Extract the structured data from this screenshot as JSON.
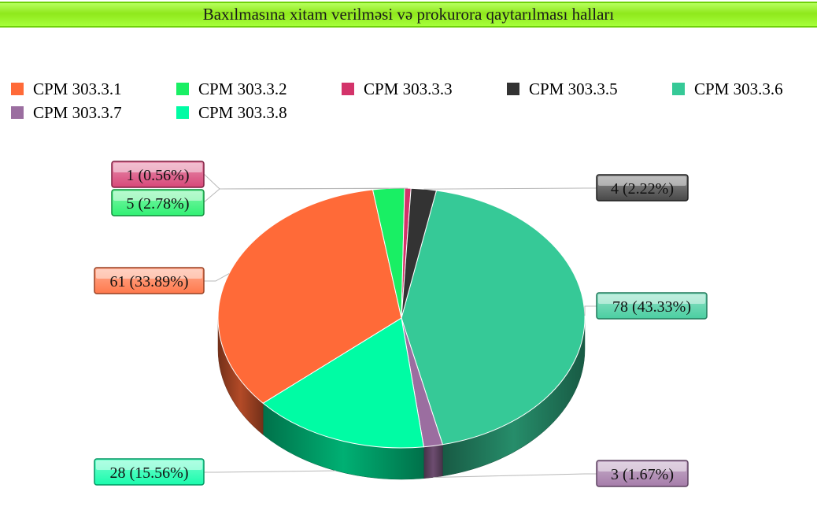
{
  "chart_data": {
    "type": "pie",
    "title": "Baxılmasına xitam verilməsi və prokurora qaytarılması halları",
    "legend_position": "top",
    "slices": [
      {
        "name": "CPM 303.3.6",
        "value": 78,
        "label": "78 (43.33%)",
        "color": "#36c997"
      },
      {
        "name": "CPM 303.3.7",
        "value": 3,
        "label": "3 (1.67%)",
        "color": "#9b6ea0"
      },
      {
        "name": "CPM 303.3.8",
        "value": 28,
        "label": "28 (15.56%)",
        "color": "#00fca4"
      },
      {
        "name": "CPM 303.3.1",
        "value": 61,
        "label": "61 (33.89%)",
        "color": "#ff6a38"
      },
      {
        "name": "CPM 303.3.2",
        "value": 5,
        "label": "5 (2.78%)",
        "color": "#19ef64"
      },
      {
        "name": "CPM 303.3.3",
        "value": 1,
        "label": "1 (0.56%)",
        "color": "#d3336a"
      },
      {
        "name": "CPM 303.3.5",
        "value": 4,
        "label": "4 (2.22%)",
        "color": "#333333"
      }
    ],
    "legend": [
      {
        "name": "CPM 303.3.1",
        "color": "#ff6a38"
      },
      {
        "name": "CPM 303.3.2",
        "color": "#19ef64"
      },
      {
        "name": "CPM 303.3.3",
        "color": "#d3336a"
      },
      {
        "name": "CPM 303.3.5",
        "color": "#333333"
      },
      {
        "name": "CPM 303.3.6",
        "color": "#36c997"
      },
      {
        "name": "CPM 303.3.7",
        "color": "#9b6ea0"
      },
      {
        "name": "CPM 303.3.8",
        "color": "#00fca4"
      }
    ]
  }
}
